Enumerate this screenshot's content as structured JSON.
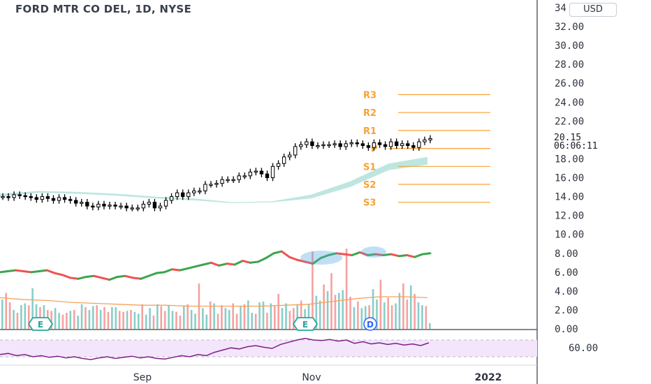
{
  "header": {
    "title": "FORD MTR CO DEL, 1D, NYSE",
    "currency_button": "USD"
  },
  "last_price": {
    "value": "20.15",
    "countdown": "06:06:11"
  },
  "colors": {
    "background": "#ffffff",
    "candle": "#000000",
    "pivot": "#f7a234",
    "ribbon": "#a8ddd6",
    "up": "#26a69a",
    "down": "#ef5350",
    "rsi_line": "#7e1f86",
    "rsi_band": "#f3e6fb",
    "earnings_badge": "#26a69a",
    "dividend_badge": "#2962ff"
  },
  "chart_data": [
    {
      "type": "candlestick",
      "title": "FORD MTR CO DEL, 1D, NYSE",
      "x_ticks": [
        "Sep",
        "Nov",
        "2022"
      ],
      "y_ticks": [
        "34",
        "32.00",
        "30.00",
        "28.00",
        "26.00",
        "24.00",
        "22.00",
        "20.00",
        "18.00",
        "16.00",
        "14.00",
        "12.00",
        "10.00",
        "8.00",
        "6.00",
        "4.00",
        "2.00",
        "0.00"
      ],
      "ylim": [
        0,
        34
      ],
      "close_series": [
        14.0,
        13.9,
        14.2,
        14.1,
        14.0,
        13.9,
        13.7,
        14.0,
        13.8,
        13.6,
        13.9,
        13.7,
        13.6,
        13.3,
        13.4,
        13.0,
        12.9,
        13.2,
        13.0,
        13.1,
        13.0,
        13.0,
        12.8,
        12.8,
        12.8,
        13.2,
        13.4,
        12.8,
        13.0,
        13.6,
        14.0,
        14.4,
        14.0,
        14.4,
        14.6,
        14.6,
        15.3,
        15.3,
        15.4,
        15.8,
        15.8,
        15.8,
        16.2,
        16.2,
        16.6,
        16.7,
        16.4,
        16.0,
        17.2,
        17.5,
        18.2,
        18.4,
        19.3,
        19.5,
        19.8,
        19.4,
        19.4,
        19.5,
        19.5,
        19.6,
        19.3,
        19.6,
        19.7,
        19.6,
        19.4,
        19.2,
        19.7,
        19.5,
        19.3,
        19.8,
        19.4,
        19.6,
        19.4,
        19.2,
        19.8,
        20.0,
        20.15
      ],
      "pivot_levels": [
        {
          "label": "R3",
          "value": 24.8
        },
        {
          "label": "R2",
          "value": 22.9
        },
        {
          "label": "R1",
          "value": 21.0
        },
        {
          "label": "P",
          "value": 19.1
        },
        {
          "label": "S1",
          "value": 17.2
        },
        {
          "label": "S2",
          "value": 15.3
        },
        {
          "label": "S3",
          "value": 13.4
        }
      ],
      "ribbon_upper": [
        14.3,
        14.6,
        14.5,
        14.3,
        14.0,
        13.8,
        13.4,
        13.5,
        14.2,
        15.6,
        17.5,
        18.2
      ],
      "ribbon_lower": [
        14.0,
        14.4,
        14.3,
        14.1,
        13.8,
        13.6,
        13.3,
        13.4,
        13.8,
        15.0,
        16.8,
        17.4
      ],
      "last_value": 20.15
    },
    {
      "type": "line",
      "name": "oscillator",
      "ylim": [
        0,
        34
      ],
      "values": [
        6.0,
        6.1,
        6.2,
        6.1,
        6.0,
        6.1,
        6.2,
        5.9,
        5.7,
        5.4,
        5.3,
        5.5,
        5.6,
        5.4,
        5.2,
        5.5,
        5.6,
        5.4,
        5.3,
        5.6,
        5.9,
        6.0,
        6.3,
        6.2,
        6.4,
        6.6,
        6.8,
        7.0,
        6.7,
        6.9,
        6.8,
        7.2,
        7.0,
        7.1,
        7.5,
        8.0,
        8.2,
        7.6,
        7.3,
        7.1,
        6.9,
        7.5,
        7.8,
        8.0,
        7.9,
        7.8,
        8.1,
        7.8,
        7.9,
        7.8,
        7.9,
        7.7,
        7.8,
        7.6,
        7.9,
        8.0
      ]
    },
    {
      "type": "bar",
      "name": "volume",
      "values": [
        3.1,
        3.8,
        2.8,
        2.0,
        1.7,
        2.5,
        2.7,
        2.5,
        4.3,
        2.6,
        2.3,
        2.5,
        2.0,
        1.9,
        2.2,
        1.7,
        1.5,
        1.7,
        1.9,
        2.0,
        1.4,
        2.6,
        2.3,
        2.0,
        2.4,
        2.5,
        2.0,
        2.3,
        1.8,
        2.3,
        2.3,
        1.9,
        1.8,
        1.9,
        2.0,
        1.8,
        1.6,
        2.6,
        1.5,
        2.2,
        1.4,
        2.6,
        2.4,
        1.9,
        2.5,
        1.9,
        1.8,
        1.4,
        2.4,
        2.6,
        2.0,
        1.6,
        4.8,
        2.2,
        1.5,
        2.9,
        2.7,
        1.6,
        2.5,
        2.2,
        2.0,
        2.7,
        1.6,
        2.4,
        2.6,
        3.0,
        1.7,
        1.6,
        2.8,
        2.9,
        1.7,
        2.7,
        2.4,
        3.7,
        2.2,
        2.7,
        1.9,
        2.2,
        2.6,
        3.0,
        2.1,
        2.6,
        8.2,
        3.5,
        3.0,
        4.7,
        4.0,
        5.9,
        3.6,
        3.8,
        4.1,
        8.5,
        3.4,
        2.3,
        2.9,
        2.2,
        2.4,
        2.5,
        4.2,
        3.1,
        5.2,
        2.8,
        3.3,
        2.5,
        2.7,
        3.8,
        4.8,
        3.1,
        4.6,
        3.7,
        2.8,
        2.5,
        2.4,
        0.6
      ],
      "avg_line": [
        3.3,
        3.1,
        3.0,
        2.8,
        2.7,
        2.6,
        2.5,
        2.5,
        2.4,
        2.4,
        2.4,
        2.4,
        2.5,
        2.6,
        2.9,
        3.2,
        3.4,
        3.4,
        3.3
      ],
      "event_badges": [
        "E",
        "E",
        "D"
      ]
    },
    {
      "type": "line",
      "name": "rsi",
      "y_ticks": [
        "60.00"
      ],
      "band": [
        40,
        70
      ],
      "values": [
        44,
        46,
        42,
        44,
        40,
        42,
        39,
        41,
        38,
        40,
        37,
        35,
        38,
        40,
        37,
        39,
        41,
        38,
        40,
        37,
        36,
        39,
        42,
        40,
        44,
        42,
        48,
        52,
        56,
        54,
        58,
        60,
        57,
        55,
        62,
        66,
        70,
        73,
        70,
        69,
        71,
        68,
        70,
        64,
        67,
        63,
        65,
        62,
        64,
        61,
        63,
        60,
        65
      ]
    }
  ]
}
